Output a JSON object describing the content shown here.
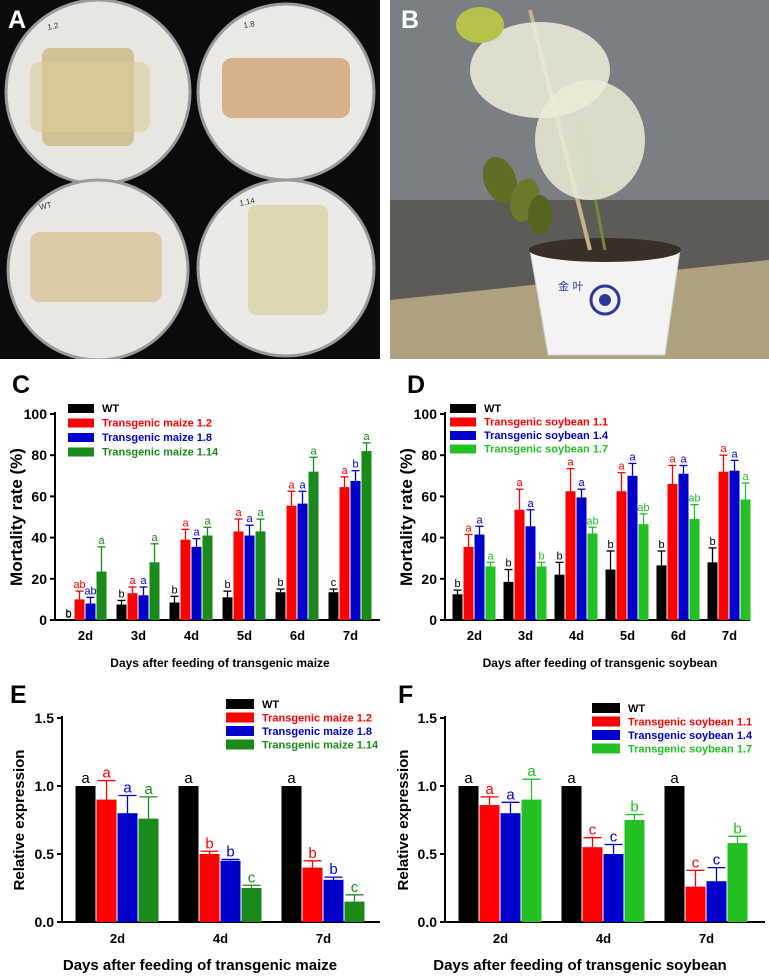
{
  "figure": {
    "panel_a_label": "A",
    "panel_b_label": "B",
    "dish_labels": [
      "1.2",
      "1.8",
      "WT",
      "1.14"
    ],
    "pot_text": "金 叶"
  },
  "colors": {
    "wt": "#000000",
    "red": "#ff0000",
    "blue": "#0000cc",
    "maize_green": "#1a8a1a",
    "soy_green": "#22c022"
  },
  "chart_data": [
    {
      "panel": "C",
      "type": "bar",
      "ylabel": "Mortality rate (%)",
      "xlabel": "Days after feeding of transgenic maize",
      "ylim": [
        0,
        100
      ],
      "yticks": [
        0,
        20,
        40,
        60,
        80,
        100
      ],
      "categories": [
        "2d",
        "3d",
        "4d",
        "5d",
        "6d",
        "7d"
      ],
      "series": [
        {
          "name": "WT",
          "color": "#000000",
          "values": [
            0,
            7.5,
            8.5,
            11,
            13.5,
            13.5
          ],
          "errors": [
            0,
            2,
            3,
            3,
            1.5,
            1.5
          ],
          "letters": [
            "b",
            "b",
            "b",
            "b",
            "b",
            "c"
          ]
        },
        {
          "name": "Transgenic maize 1.2",
          "color": "#ff0000",
          "values": [
            10,
            13,
            39,
            43,
            55.5,
            64.5
          ],
          "errors": [
            4,
            3,
            5,
            6,
            7,
            5
          ],
          "letters": [
            "ab",
            "a",
            "a",
            "a",
            "a",
            "a"
          ]
        },
        {
          "name": "Transgenic maize 1.8",
          "color": "#0000cc",
          "values": [
            8,
            12,
            35.5,
            41,
            56.5,
            67.5
          ],
          "errors": [
            3,
            4,
            4,
            5,
            6,
            5
          ],
          "letters": [
            "ab",
            "a",
            "a",
            "a",
            "a",
            "b"
          ]
        },
        {
          "name": "Transgenic maize 1.14",
          "color": "#1a8a1a",
          "values": [
            23.5,
            28,
            41,
            43,
            72,
            82
          ],
          "errors": [
            12,
            9,
            4,
            6,
            7,
            4
          ],
          "letters": [
            "a",
            "a",
            "a",
            "a",
            "a",
            "a"
          ]
        }
      ],
      "extra_labels": [
        {
          "category": "2d",
          "text": "0",
          "value": 0
        }
      ]
    },
    {
      "panel": "D",
      "type": "bar",
      "ylabel": "Mortality rate (%)",
      "xlabel": "Days after feeding of transgenic soybean",
      "ylim": [
        0,
        100
      ],
      "yticks": [
        0,
        20,
        40,
        60,
        80,
        100
      ],
      "categories": [
        "2d",
        "3d",
        "4d",
        "5d",
        "6d",
        "7d"
      ],
      "series": [
        {
          "name": "WT",
          "color": "#000000",
          "values": [
            12.5,
            18.5,
            22,
            24.5,
            26.5,
            28
          ],
          "errors": [
            2,
            6,
            6,
            9,
            7,
            7
          ],
          "letters": [
            "b",
            "b",
            "b",
            "b",
            "b",
            "b"
          ]
        },
        {
          "name": "Transgenic soybean 1.1",
          "color": "#ff0000",
          "values": [
            35.5,
            53.5,
            62.5,
            62.5,
            66,
            72
          ],
          "errors": [
            6,
            10,
            11,
            9,
            9,
            8
          ],
          "letters": [
            "a",
            "a",
            "a",
            "a",
            "a",
            "a"
          ]
        },
        {
          "name": "Transgenic soybean 1.4",
          "color": "#0000cc",
          "values": [
            41.5,
            45.5,
            59.5,
            70,
            71,
            72.5
          ],
          "errors": [
            4,
            8,
            4,
            6,
            4,
            5
          ],
          "letters": [
            "a",
            "a",
            "a",
            "a",
            "a",
            "a"
          ]
        },
        {
          "name": "Transgenic soybean 1.7",
          "color": "#22c022",
          "values": [
            26,
            26,
            42,
            46.5,
            49,
            58.5
          ],
          "errors": [
            2,
            2,
            3,
            5,
            7,
            8
          ],
          "letters": [
            "a",
            "b",
            "ab",
            "ab",
            "ab",
            "a"
          ]
        }
      ]
    },
    {
      "panel": "E",
      "type": "bar",
      "ylabel": "Relative expression",
      "xlabel": "Days after feeding of transgenic maize",
      "ylim": [
        0,
        1.5
      ],
      "yticks": [
        0.0,
        0.5,
        1.0,
        1.5
      ],
      "categories": [
        "2d",
        "4d",
        "7d"
      ],
      "series": [
        {
          "name": "WT",
          "color": "#000000",
          "values": [
            1.0,
            1.0,
            1.0
          ],
          "errors": [
            0,
            0,
            0
          ],
          "letters": [
            "a",
            "a",
            "a"
          ]
        },
        {
          "name": "Transgenic maize 1.2",
          "color": "#ff0000",
          "values": [
            0.9,
            0.5,
            0.4
          ],
          "errors": [
            0.14,
            0.02,
            0.05
          ],
          "letters": [
            "a",
            "b",
            "b"
          ]
        },
        {
          "name": "Transgenic maize 1.8",
          "color": "#0000cc",
          "values": [
            0.8,
            0.45,
            0.31
          ],
          "errors": [
            0.13,
            0.01,
            0.02
          ],
          "letters": [
            "a",
            "b",
            "b"
          ]
        },
        {
          "name": "Transgenic maize 1.14",
          "color": "#1a8a1a",
          "values": [
            0.76,
            0.25,
            0.15
          ],
          "errors": [
            0.16,
            0.02,
            0.05
          ],
          "letters": [
            "a",
            "c",
            "c"
          ]
        }
      ]
    },
    {
      "panel": "F",
      "type": "bar",
      "ylabel": "Relative expression",
      "xlabel": "Days after feeding of transgenic soybean",
      "ylim": [
        0,
        1.5
      ],
      "yticks": [
        0.0,
        0.5,
        1.0,
        1.5
      ],
      "categories": [
        "2d",
        "4d",
        "7d"
      ],
      "series": [
        {
          "name": "WT",
          "color": "#000000",
          "values": [
            1.0,
            1.0,
            1.0
          ],
          "errors": [
            0,
            0,
            0
          ],
          "letters": [
            "a",
            "a",
            "a"
          ]
        },
        {
          "name": "Transgenic soybean 1.1",
          "color": "#ff0000",
          "values": [
            0.86,
            0.55,
            0.26
          ],
          "errors": [
            0.06,
            0.07,
            0.12
          ],
          "letters": [
            "a",
            "c",
            "c"
          ]
        },
        {
          "name": "Transgenic soybean 1.4",
          "color": "#0000cc",
          "values": [
            0.8,
            0.5,
            0.3
          ],
          "errors": [
            0.08,
            0.07,
            0.1
          ],
          "letters": [
            "a",
            "c",
            "c"
          ]
        },
        {
          "name": "Transgenic soybean 1.7",
          "color": "#22c022",
          "values": [
            0.9,
            0.75,
            0.58
          ],
          "errors": [
            0.15,
            0.04,
            0.05
          ],
          "letters": [
            "a",
            "b",
            "b"
          ]
        }
      ]
    }
  ]
}
